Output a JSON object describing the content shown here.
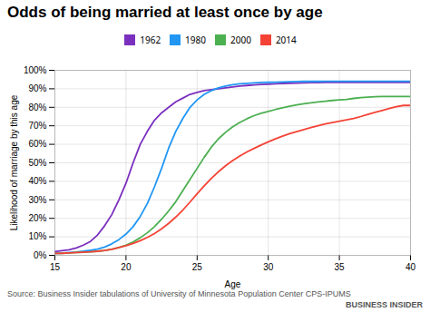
{
  "chart_data": {
    "type": "line",
    "title": "Odds of being married at least once by age",
    "xlabel": "Age",
    "ylabel": "Likelihood of marriage by this age",
    "annotations": [
      "Source: Business Insider tabulations of University of Minnesota Population Center CPS-IPUMS",
      "BUSINESS INSIDER"
    ],
    "x": [
      15,
      15.5,
      16,
      16.5,
      17,
      17.5,
      18,
      18.5,
      19,
      19.5,
      20,
      20.5,
      21,
      21.5,
      22,
      22.5,
      23,
      23.5,
      24,
      24.5,
      25,
      25.5,
      26,
      26.5,
      27,
      27.5,
      28,
      28.5,
      29,
      29.5,
      30,
      30.5,
      31,
      31.5,
      32,
      32.5,
      33,
      33.5,
      34,
      34.5,
      35,
      35.5,
      36,
      36.5,
      37,
      37.5,
      38,
      38.5,
      39,
      39.5,
      40
    ],
    "series": [
      {
        "name": "1962",
        "color": "#7B2FBE",
        "values": [
          0.02,
          0.025,
          0.03,
          0.04,
          0.055,
          0.075,
          0.11,
          0.16,
          0.22,
          0.3,
          0.39,
          0.5,
          0.6,
          0.67,
          0.73,
          0.77,
          0.8,
          0.83,
          0.85,
          0.87,
          0.88,
          0.89,
          0.895,
          0.9,
          0.905,
          0.91,
          0.915,
          0.918,
          0.921,
          0.923,
          0.925,
          0.927,
          0.929,
          0.93,
          0.931,
          0.932,
          0.933,
          0.933,
          0.934,
          0.934,
          0.935,
          0.935,
          0.935,
          0.935,
          0.935,
          0.935,
          0.935,
          0.935,
          0.935,
          0.935,
          0.935
        ]
      },
      {
        "name": "1980",
        "color": "#2196F3",
        "values": [
          0.01,
          0.012,
          0.015,
          0.018,
          0.022,
          0.027,
          0.034,
          0.045,
          0.062,
          0.085,
          0.115,
          0.155,
          0.21,
          0.28,
          0.37,
          0.47,
          0.58,
          0.67,
          0.74,
          0.8,
          0.84,
          0.87,
          0.89,
          0.905,
          0.915,
          0.922,
          0.927,
          0.93,
          0.932,
          0.934,
          0.935,
          0.936,
          0.937,
          0.938,
          0.939,
          0.94,
          0.94,
          0.94,
          0.941,
          0.941,
          0.941,
          0.941,
          0.941,
          0.941,
          0.941,
          0.941,
          0.941,
          0.941,
          0.941,
          0.941,
          0.941
        ]
      },
      {
        "name": "2000",
        "color": "#4CAF50",
        "values": [
          0.01,
          0.011,
          0.013,
          0.015,
          0.017,
          0.019,
          0.022,
          0.026,
          0.033,
          0.042,
          0.055,
          0.072,
          0.095,
          0.122,
          0.155,
          0.195,
          0.24,
          0.29,
          0.35,
          0.41,
          0.47,
          0.53,
          0.585,
          0.63,
          0.665,
          0.695,
          0.718,
          0.738,
          0.755,
          0.768,
          0.778,
          0.788,
          0.797,
          0.806,
          0.813,
          0.819,
          0.824,
          0.829,
          0.833,
          0.837,
          0.84,
          0.843,
          0.848,
          0.852,
          0.855,
          0.857,
          0.858,
          0.858,
          0.858,
          0.858,
          0.858
        ]
      },
      {
        "name": "2014",
        "color": "#F44336",
        "values": [
          0.01,
          0.011,
          0.013,
          0.015,
          0.017,
          0.019,
          0.022,
          0.026,
          0.033,
          0.042,
          0.052,
          0.064,
          0.079,
          0.097,
          0.118,
          0.143,
          0.173,
          0.207,
          0.245,
          0.288,
          0.333,
          0.376,
          0.416,
          0.452,
          0.484,
          0.512,
          0.537,
          0.559,
          0.578,
          0.596,
          0.613,
          0.629,
          0.644,
          0.657,
          0.669,
          0.68,
          0.69,
          0.7,
          0.71,
          0.718,
          0.725,
          0.732,
          0.74,
          0.75,
          0.762,
          0.773,
          0.783,
          0.793,
          0.803,
          0.81,
          0.81
        ]
      }
    ],
    "xlim": [
      15,
      40
    ],
    "xticks": [
      15,
      20,
      25,
      30,
      35,
      40
    ],
    "ylim": [
      0.0,
      1.0
    ],
    "yticks": [
      {
        "value": 0.0,
        "label": "0%"
      },
      {
        "value": 0.1,
        "label": "10%"
      },
      {
        "value": 0.2,
        "label": "20%"
      },
      {
        "value": 0.3,
        "label": "30%"
      },
      {
        "value": 0.4,
        "label": "40%"
      },
      {
        "value": 0.5,
        "label": "50%"
      },
      {
        "value": 0.6,
        "label": "60%"
      },
      {
        "value": 0.7,
        "label": "70%"
      },
      {
        "value": 0.8,
        "label": "80%"
      },
      {
        "value": 0.9,
        "label": "90%"
      },
      {
        "value": 1.0,
        "label": "100%"
      }
    ],
    "grid": true,
    "legend": "top"
  }
}
